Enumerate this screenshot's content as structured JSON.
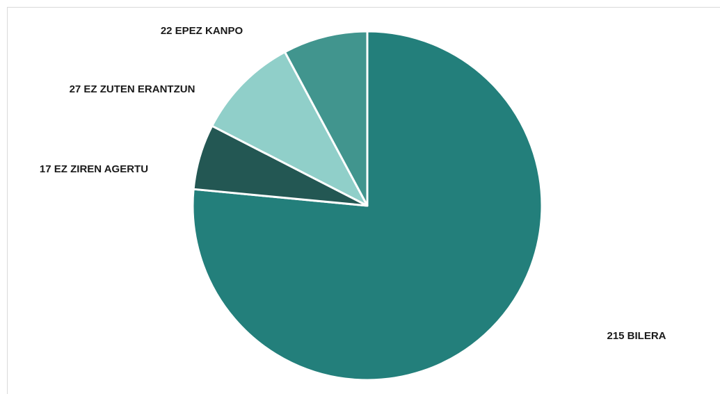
{
  "chart_data": {
    "type": "pie",
    "values": [
      215,
      17,
      27,
      22
    ],
    "value_labels": [
      "215 BILERA",
      "17 EZ ZIREN AGERTU",
      "27 EZ ZUTEN ERANTZUN",
      "22 EPEZ KANPO"
    ],
    "colors": [
      "#237f7b",
      "#235753",
      "#90cfc9",
      "#41958e"
    ]
  }
}
